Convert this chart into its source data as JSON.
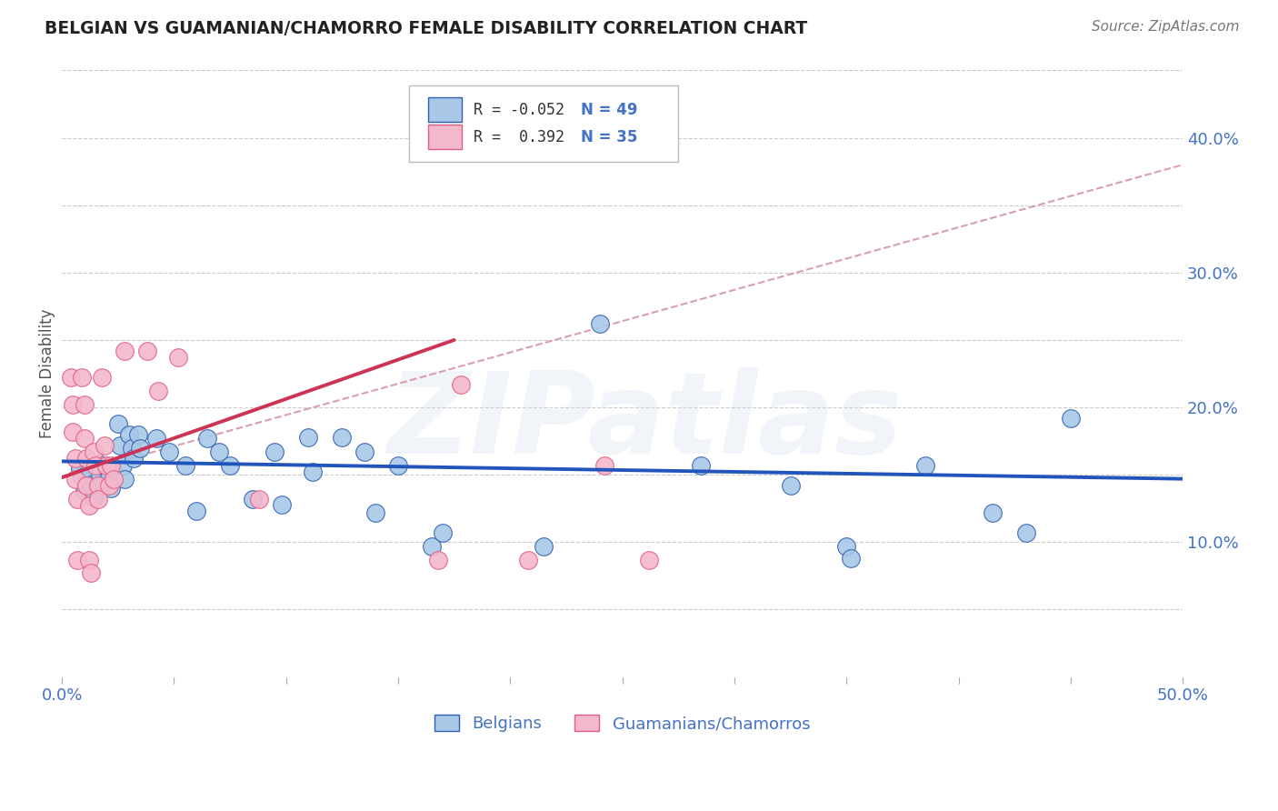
{
  "title": "BELGIAN VS GUAMANIAN/CHAMORRO FEMALE DISABILITY CORRELATION CHART",
  "source": "Source: ZipAtlas.com",
  "ylabel": "Female Disability",
  "xlim": [
    0.0,
    0.5
  ],
  "ylim": [
    0.0,
    0.45
  ],
  "watermark": "ZIPatlas",
  "legend_box": {
    "R1": "-0.052",
    "N1": "49",
    "color1": "#a8c4e0",
    "R2": "0.392",
    "N2": "35",
    "color2": "#f4b8cc"
  },
  "blue_color": "#3060b0",
  "pink_color": "#e06080",
  "dot_blue": "#a8c8e8",
  "dot_pink": "#f4b8cc",
  "trendline_blue_color": "#2255bb",
  "trendline_pink_color": "#cc3355",
  "trendline_dashed_color": "#d08898",
  "grid_color": "#cccccc",
  "background_color": "#ffffff",
  "title_color": "#222222",
  "axis_label_color": "#4472c4",
  "blue_points": [
    [
      0.008,
      0.155
    ],
    [
      0.009,
      0.148
    ],
    [
      0.01,
      0.138
    ],
    [
      0.012,
      0.152
    ],
    [
      0.013,
      0.143
    ],
    [
      0.014,
      0.133
    ],
    [
      0.016,
      0.158
    ],
    [
      0.017,
      0.15
    ],
    [
      0.018,
      0.142
    ],
    [
      0.02,
      0.155
    ],
    [
      0.021,
      0.148
    ],
    [
      0.022,
      0.14
    ],
    [
      0.025,
      0.188
    ],
    [
      0.026,
      0.172
    ],
    [
      0.027,
      0.157
    ],
    [
      0.028,
      0.147
    ],
    [
      0.03,
      0.18
    ],
    [
      0.031,
      0.17
    ],
    [
      0.032,
      0.162
    ],
    [
      0.034,
      0.18
    ],
    [
      0.035,
      0.17
    ],
    [
      0.042,
      0.177
    ],
    [
      0.048,
      0.167
    ],
    [
      0.055,
      0.157
    ],
    [
      0.06,
      0.123
    ],
    [
      0.065,
      0.177
    ],
    [
      0.07,
      0.167
    ],
    [
      0.075,
      0.157
    ],
    [
      0.085,
      0.132
    ],
    [
      0.095,
      0.167
    ],
    [
      0.098,
      0.128
    ],
    [
      0.11,
      0.178
    ],
    [
      0.112,
      0.152
    ],
    [
      0.125,
      0.178
    ],
    [
      0.135,
      0.167
    ],
    [
      0.14,
      0.122
    ],
    [
      0.15,
      0.157
    ],
    [
      0.165,
      0.097
    ],
    [
      0.17,
      0.107
    ],
    [
      0.215,
      0.097
    ],
    [
      0.24,
      0.262
    ],
    [
      0.285,
      0.157
    ],
    [
      0.325,
      0.142
    ],
    [
      0.35,
      0.097
    ],
    [
      0.352,
      0.088
    ],
    [
      0.385,
      0.157
    ],
    [
      0.415,
      0.122
    ],
    [
      0.43,
      0.107
    ],
    [
      0.45,
      0.192
    ]
  ],
  "pink_points": [
    [
      0.004,
      0.222
    ],
    [
      0.005,
      0.202
    ],
    [
      0.005,
      0.182
    ],
    [
      0.006,
      0.162
    ],
    [
      0.006,
      0.147
    ],
    [
      0.007,
      0.132
    ],
    [
      0.007,
      0.087
    ],
    [
      0.009,
      0.222
    ],
    [
      0.01,
      0.202
    ],
    [
      0.01,
      0.177
    ],
    [
      0.011,
      0.162
    ],
    [
      0.011,
      0.142
    ],
    [
      0.012,
      0.127
    ],
    [
      0.012,
      0.087
    ],
    [
      0.013,
      0.077
    ],
    [
      0.014,
      0.167
    ],
    [
      0.015,
      0.157
    ],
    [
      0.016,
      0.142
    ],
    [
      0.016,
      0.132
    ],
    [
      0.018,
      0.222
    ],
    [
      0.019,
      0.172
    ],
    [
      0.02,
      0.157
    ],
    [
      0.021,
      0.142
    ],
    [
      0.022,
      0.157
    ],
    [
      0.023,
      0.147
    ],
    [
      0.028,
      0.242
    ],
    [
      0.038,
      0.242
    ],
    [
      0.043,
      0.212
    ],
    [
      0.052,
      0.237
    ],
    [
      0.088,
      0.132
    ],
    [
      0.168,
      0.087
    ],
    [
      0.178,
      0.217
    ],
    [
      0.208,
      0.087
    ],
    [
      0.242,
      0.157
    ],
    [
      0.262,
      0.087
    ]
  ],
  "blue_trendline": [
    [
      0.0,
      0.16
    ],
    [
      0.5,
      0.147
    ]
  ],
  "pink_trendline_solid": [
    [
      0.0,
      0.148
    ],
    [
      0.175,
      0.25
    ]
  ],
  "pink_trendline_dashed": [
    [
      0.0,
      0.148
    ],
    [
      0.5,
      0.38
    ]
  ]
}
